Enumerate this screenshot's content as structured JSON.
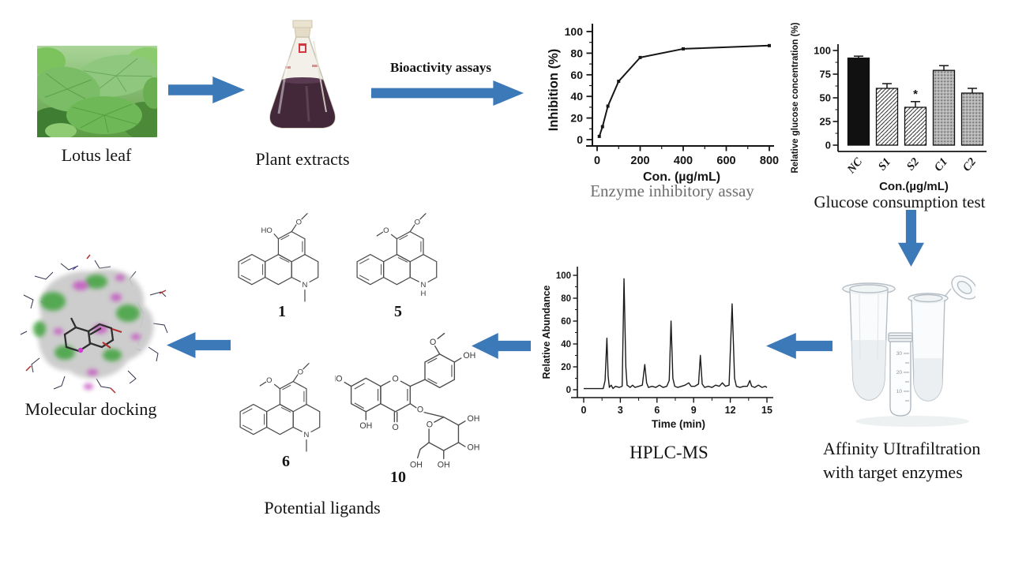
{
  "colors": {
    "arrow": "#3c79b8",
    "caption_gray": "#6e6e6e",
    "axis": "#151515"
  },
  "steps": {
    "lotus": {
      "label": "Lotus leaf"
    },
    "extract": {
      "label": "Plant extracts"
    },
    "bioassay_arrow": {
      "label": "Bioactivity assays"
    },
    "enzyme": {
      "caption": "Enzyme inhibitory assay"
    },
    "glucose": {
      "caption": "Glucose consumption test"
    },
    "ultrafiltration": {
      "caption_line1": "Affinity UItrafiltration",
      "caption_line2": "with target enzymes"
    },
    "hplc": {
      "caption": "HPLC-MS"
    },
    "ligands": {
      "caption": "Potential ligands"
    },
    "docking": {
      "caption": "Molecular docking"
    }
  },
  "compounds": {
    "c1": {
      "number": "1",
      "top_o": "O",
      "left": "HO",
      "n": "N"
    },
    "c5": {
      "number": "5",
      "top_o": "O",
      "left_o": "O",
      "n": "N",
      "nh": "H"
    },
    "c6": {
      "number": "6",
      "top_o": "O",
      "left_o": "O",
      "n": "N"
    },
    "c10": {
      "number": "10",
      "ho": "HO",
      "ring_o": "O",
      "carbonyl_o": "O",
      "oh5": "OH",
      "gly_o": "O",
      "b_ome_o": "O",
      "b_oh": "OH",
      "sugar_o": "O",
      "oh_a": "OH",
      "oh_b": "OH",
      "oh_c": "OH",
      "oh_d": "OH"
    }
  },
  "tube_graduations": [
    "30",
    "20",
    "10"
  ],
  "chart_data": [
    {
      "id": "enzyme_inhibitory_assay",
      "type": "line",
      "xlabel": "Con. (µg/mL)",
      "ylabel": "Inhibition (%)",
      "x": [
        10,
        25,
        50,
        100,
        200,
        400,
        800
      ],
      "y": [
        3,
        12,
        31,
        54,
        76,
        84,
        87
      ],
      "xticks": [
        0,
        200,
        400,
        600,
        800
      ],
      "yticks": [
        0,
        20,
        40,
        60,
        80,
        100
      ],
      "xlim": [
        0,
        800
      ],
      "ylim": [
        0,
        100
      ],
      "grid": false,
      "legend": "none"
    },
    {
      "id": "glucose_consumption_test",
      "type": "bar",
      "xlabel": "Con.(µg/mL)",
      "ylabel": "Relative glucose concentration (%)",
      "categories": [
        "NC",
        "S1",
        "S2",
        "C1",
        "C2"
      ],
      "values": [
        92,
        60,
        40,
        79,
        55
      ],
      "errors": [
        2,
        5,
        6,
        5,
        5
      ],
      "styles": [
        "solid-black",
        "diagonal-hatch",
        "diagonal-hatch",
        "gray-dots",
        "gray-dots"
      ],
      "annotations": [
        {
          "category": "S2",
          "text": "*"
        }
      ],
      "yticks": [
        0,
        25,
        50,
        75,
        100
      ],
      "ylim": [
        0,
        100
      ],
      "grid": false,
      "legend": "none"
    },
    {
      "id": "hplc_chromatogram",
      "type": "line",
      "xlabel": "Time (min)",
      "ylabel": "Relative Abundance",
      "peaks": [
        [
          1.9,
          45
        ],
        [
          3.3,
          97
        ],
        [
          5.0,
          22
        ],
        [
          7.15,
          60
        ],
        [
          9.55,
          30
        ],
        [
          12.15,
          75
        ]
      ],
      "trace": [
        [
          0,
          1
        ],
        [
          1.6,
          1
        ],
        [
          1.75,
          8
        ],
        [
          1.9,
          45
        ],
        [
          2.0,
          12
        ],
        [
          2.1,
          2
        ],
        [
          2.25,
          4
        ],
        [
          2.4,
          1
        ],
        [
          2.6,
          3
        ],
        [
          2.9,
          2
        ],
        [
          3.15,
          3
        ],
        [
          3.3,
          97
        ],
        [
          3.45,
          20
        ],
        [
          3.55,
          4
        ],
        [
          3.8,
          2
        ],
        [
          4.0,
          4
        ],
        [
          4.2,
          2
        ],
        [
          4.5,
          3
        ],
        [
          4.8,
          4
        ],
        [
          5.0,
          22
        ],
        [
          5.15,
          6
        ],
        [
          5.3,
          2
        ],
        [
          5.6,
          3
        ],
        [
          5.9,
          2
        ],
        [
          6.2,
          4
        ],
        [
          6.5,
          2
        ],
        [
          6.8,
          3
        ],
        [
          7.0,
          8
        ],
        [
          7.15,
          60
        ],
        [
          7.3,
          10
        ],
        [
          7.45,
          3
        ],
        [
          7.7,
          2
        ],
        [
          8.0,
          3
        ],
        [
          8.3,
          4
        ],
        [
          8.6,
          6
        ],
        [
          8.8,
          3
        ],
        [
          9.1,
          3
        ],
        [
          9.4,
          5
        ],
        [
          9.55,
          30
        ],
        [
          9.7,
          5
        ],
        [
          9.9,
          2
        ],
        [
          10.2,
          3
        ],
        [
          10.5,
          2
        ],
        [
          10.8,
          4
        ],
        [
          11.1,
          3
        ],
        [
          11.35,
          6
        ],
        [
          11.6,
          3
        ],
        [
          11.9,
          4
        ],
        [
          12.15,
          75
        ],
        [
          12.35,
          10
        ],
        [
          12.5,
          3
        ],
        [
          12.8,
          2
        ],
        [
          13.1,
          3
        ],
        [
          13.4,
          3
        ],
        [
          13.6,
          8
        ],
        [
          13.75,
          3
        ],
        [
          14.0,
          2
        ],
        [
          14.3,
          4
        ],
        [
          14.6,
          2
        ],
        [
          14.85,
          3
        ],
        [
          15,
          2
        ]
      ],
      "xticks": [
        0,
        3,
        6,
        9,
        12,
        15
      ],
      "yticks": [
        0,
        20,
        40,
        60,
        80,
        100
      ],
      "xlim": [
        0,
        15
      ],
      "ylim": [
        0,
        100
      ],
      "grid": false,
      "legend": "none"
    }
  ]
}
